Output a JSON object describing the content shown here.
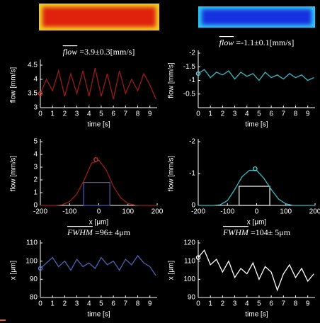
{
  "chart_data": [
    {
      "type": "line",
      "title": {
        "symbol": "flow",
        "text": "=3.9±0.3[mm/s]"
      },
      "xlabel": "time [s]",
      "ylabel": "flow [mm/s]",
      "xlim": [
        0,
        9.6
      ],
      "xticks": [
        0,
        1,
        2,
        3,
        4,
        5,
        6,
        7,
        8,
        9
      ],
      "ylim": [
        3,
        4.6
      ],
      "yticks": [
        3,
        3.5,
        4,
        4.5
      ],
      "x": [
        0,
        0.5,
        1,
        1.5,
        2,
        2.5,
        3,
        3.5,
        4,
        4.5,
        5,
        5.5,
        6,
        6.5,
        7,
        7.5,
        8,
        8.5,
        9,
        9.5
      ],
      "series": [
        {
          "color": "#9a1a1a",
          "values": [
            3.5,
            4.0,
            3.6,
            4.3,
            3.4,
            4.2,
            3.5,
            4.3,
            3.4,
            4.4,
            3.4,
            4.2,
            3.3,
            4.3,
            3.5,
            4.0,
            3.6,
            4.2,
            3.8,
            3.3
          ]
        }
      ],
      "markers": {
        "color": "#e03030",
        "x": [
          0
        ],
        "values": [
          3.5
        ]
      }
    },
    {
      "type": "line",
      "title": {
        "symbol": "flow",
        "text": "=-1.1±0.1[mm/s]"
      },
      "xlabel": "time [s]",
      "ylabel": "flow [mm/s]",
      "xlim": [
        0,
        9.6
      ],
      "xticks": [
        0,
        1,
        2,
        3,
        4,
        5,
        6,
        7,
        8,
        9
      ],
      "ylim": [
        0,
        -2
      ],
      "yticks": [
        -2,
        -1.5,
        -1,
        -0.5
      ],
      "x": [
        0,
        0.5,
        1,
        1.5,
        2,
        2.5,
        3,
        3.5,
        4,
        4.5,
        5,
        5.5,
        6,
        6.5,
        7,
        7.5,
        8,
        8.5,
        9,
        9.5
      ],
      "series": [
        {
          "color": "#3cb8c0",
          "values": [
            -1.25,
            -1.4,
            -1.1,
            -1.3,
            -1.2,
            -1.35,
            -1.05,
            -1.3,
            -1.15,
            -1.25,
            -1.0,
            -1.3,
            -1.1,
            -1.2,
            -1.05,
            -1.25,
            -1.1,
            -1.2,
            -1.0,
            -1.1
          ]
        }
      ],
      "markers": {
        "color": "#5ad8e0",
        "x": [
          0
        ],
        "values": [
          -1.25
        ]
      }
    },
    {
      "type": "line",
      "xlabel": "x [μm]",
      "ylabel": "flow [mm/s]",
      "xlim": [
        -200,
        200
      ],
      "xticks": [
        -200,
        -100,
        0,
        100,
        200
      ],
      "ylim": [
        0,
        5
      ],
      "yticks": [
        0,
        1,
        2,
        3,
        4,
        5
      ],
      "x": [
        -200,
        -175,
        -150,
        -125,
        -100,
        -75,
        -50,
        -25,
        0,
        25,
        50,
        75,
        100,
        125,
        150,
        175,
        200
      ],
      "series": [
        {
          "color": "#9a1a1a",
          "values": [
            0,
            0,
            0,
            0.05,
            0.3,
            0.9,
            2.0,
            3.3,
            3.55,
            2.8,
            1.5,
            0.6,
            0.15,
            0.02,
            0,
            0,
            0
          ]
        }
      ],
      "markers": {
        "color": "#e03030",
        "x": [
          -10
        ],
        "values": [
          3.6
        ]
      },
      "box": {
        "color": "#4a5ab8",
        "x": [
          -52,
          38
        ],
        "value": 1.8
      }
    },
    {
      "type": "line",
      "xlabel": "x [μm]",
      "ylabel": "flow [mm/s]",
      "xlim": [
        -200,
        200
      ],
      "xticks": [
        -200,
        -100,
        0,
        100,
        200
      ],
      "ylim": [
        0,
        -2
      ],
      "yticks": [
        -2,
        -1,
        0
      ],
      "x": [
        -200,
        -175,
        -150,
        -125,
        -100,
        -75,
        -50,
        -25,
        0,
        25,
        50,
        75,
        100,
        125,
        150,
        175,
        200
      ],
      "series": [
        {
          "color": "#3cb8c0",
          "values": [
            0,
            0,
            0,
            -0.02,
            -0.15,
            -0.5,
            -0.9,
            -1.1,
            -1.1,
            -0.85,
            -0.5,
            -0.2,
            -0.05,
            0,
            0,
            0,
            0
          ]
        }
      ],
      "markers": {
        "color": "#5ad8e0",
        "x": [
          -5
        ],
        "values": [
          -1.15
        ]
      },
      "box": {
        "color": "#ffffff",
        "x": [
          -60,
          45
        ],
        "value": -0.6
      }
    },
    {
      "type": "line",
      "title": {
        "symbol": "FWHM",
        "text": "=96± 4μm"
      },
      "xlabel": "time [s]",
      "ylabel": "x [μm]",
      "xlim": [
        0,
        9.6
      ],
      "xticks": [
        0,
        1,
        2,
        3,
        4,
        5,
        6,
        7,
        8,
        9
      ],
      "ylim": [
        80,
        110
      ],
      "yticks": [
        80,
        90,
        100,
        110
      ],
      "x": [
        0,
        0.5,
        1,
        1.5,
        2,
        2.5,
        3,
        3.5,
        4,
        4.5,
        5,
        5.5,
        6,
        6.5,
        7,
        7.5,
        8,
        8.5,
        9,
        9.5
      ],
      "series": [
        {
          "color": "#5060b0",
          "values": [
            96,
            99,
            102,
            97,
            100,
            95,
            101,
            97,
            99,
            96,
            102,
            98,
            100,
            95,
            101,
            98,
            103,
            99,
            97,
            92
          ]
        }
      ],
      "markers": {
        "color": "#6878d0",
        "x": [
          0
        ],
        "values": [
          96
        ]
      }
    },
    {
      "type": "line",
      "title": {
        "symbol": "FWHM",
        "text": "=104± 5μm"
      },
      "xlabel": "time [s]",
      "ylabel": "x [μm]",
      "xlim": [
        0,
        9.6
      ],
      "xticks": [
        0,
        1,
        2,
        3,
        4,
        5,
        6,
        7,
        8,
        9
      ],
      "ylim": [
        90,
        120
      ],
      "yticks": [
        90,
        100,
        110,
        120
      ],
      "x": [
        0,
        0.5,
        1,
        1.5,
        2,
        2.5,
        3,
        3.5,
        4,
        4.5,
        5,
        5.5,
        6,
        6.5,
        7,
        7.5,
        8,
        8.5,
        9,
        9.5
      ],
      "series": [
        {
          "color": "#ffffff",
          "values": [
            112,
            116,
            108,
            111,
            104,
            110,
            101,
            106,
            103,
            109,
            100,
            107,
            104,
            94,
            103,
            108,
            101,
            106,
            99,
            103
          ]
        }
      ],
      "markers": {
        "color": "#ffffff",
        "x": [
          0
        ],
        "values": [
          112
        ]
      }
    }
  ]
}
